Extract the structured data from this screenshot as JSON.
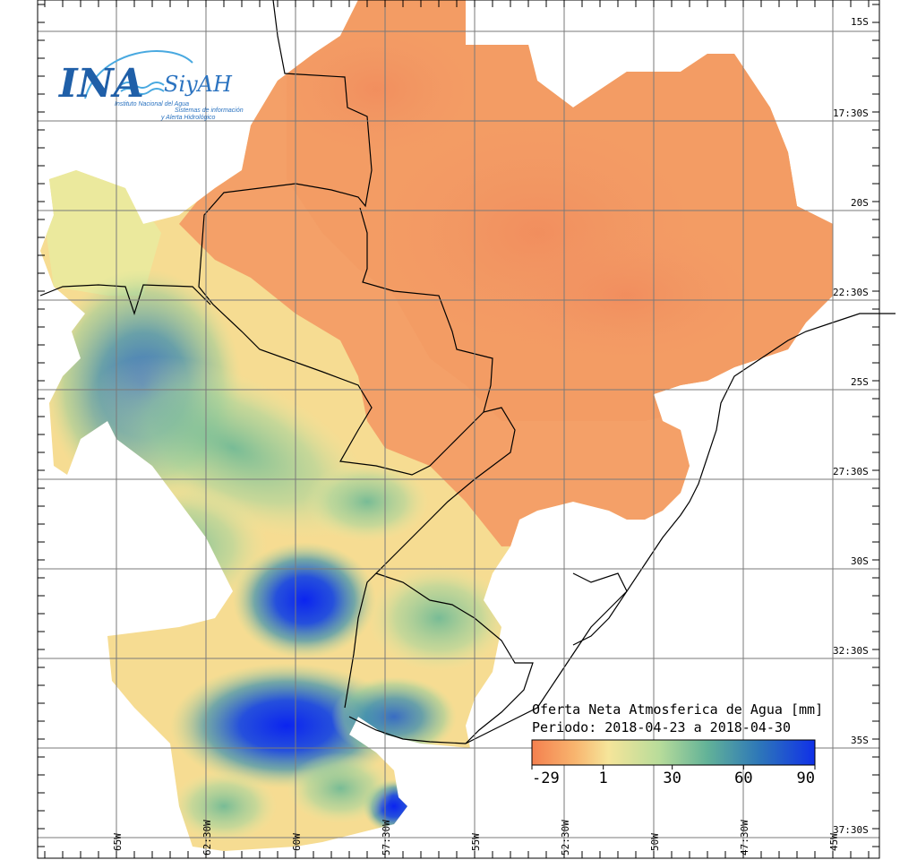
{
  "logo": {
    "ina": "INA",
    "siyah": "SiyAH",
    "institute": "Instituto Nacional del Agua",
    "system_line1": "Sistemas de información",
    "system_line2": "y Alerta Hidrológico",
    "colors": {
      "primary": "#1f5fa8",
      "accent": "#49a9e0"
    }
  },
  "map": {
    "title_line1": "Oferta Neta Atmosferica de Agua [mm]",
    "title_line2": "Periodo: 2018-04-23 a 2018-04-30",
    "lat_labels": [
      "15S",
      "17:30S",
      "20S",
      "22:30S",
      "25S",
      "27:30S",
      "30S",
      "32:30S",
      "35S",
      "37:30S"
    ],
    "lon_labels": [
      "65W",
      "62:30W",
      "60W",
      "57:30W",
      "55W",
      "52:30W",
      "50W",
      "47:30W",
      "45W"
    ],
    "colorbar": {
      "ticks": [
        "-29",
        "1",
        "30",
        "60",
        "90"
      ],
      "tick_values": [
        -29,
        1,
        30,
        60,
        90
      ],
      "range": [
        -29,
        90
      ],
      "colors": [
        "#f4804f",
        "#f8b46e",
        "#f6e59a",
        "#b8dc9a",
        "#62b298",
        "#2e78b8",
        "#1030e8"
      ]
    }
  }
}
